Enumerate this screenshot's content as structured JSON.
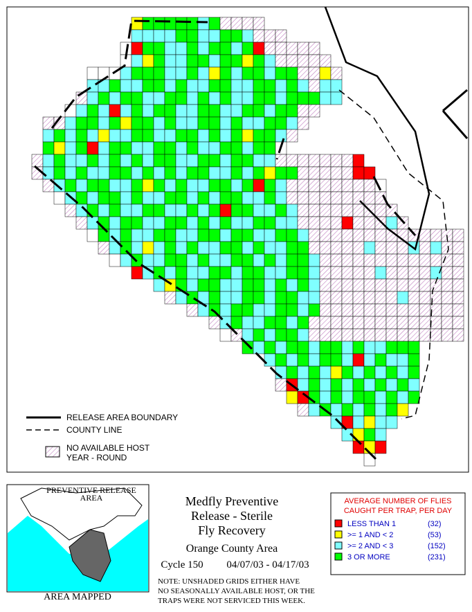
{
  "map_legend": {
    "release_boundary": "RELEASE AREA BOUNDARY",
    "county_line": "COUNTY LINE",
    "no_host": [
      "NO AVAILABLE HOST",
      "YEAR - ROUND"
    ]
  },
  "grid": {
    "colors": {
      "R": "#ff0000",
      "Y": "#ffff00",
      "C": "#80ffff",
      "G": "#00ff00",
      "W": "#ffffff"
    },
    "rows": [
      "..........YGGGGGCGHHHH",
      "..........CCCCGGCCGGCHHH",
      ".........WRGGCCGCGGCGRHHHHH",
      ".........WCYGCCGGCGGYGCHHHHH",
      "......WWWCGGGCCGCYGCGGCGGHHYH",
      "......CCGCCGGCGCCGGCCGGCGCHCC",
      ".....HCGCGGCCGGCGCGCCGGCGGGCC",
      "....WCGCRCGCGGCCGGCCGGCGGHH",
      "..HHCGGCGYGGCGCCGGCGCCGGCH",
      "..CGCGCYCCGGCCGGCGCGYGGCH",
      "..GYCGRCGGCCGGCGCCGGCGGW",
      ".HCGCCGCGCGCGGCCGGCGGCCHHHHHHHR",
      ".HCGCGCCGGCGCGCGGCCGCGYGGHHHHHRR",
      "..HCGCGGCCGYGCGCCGGCGRGCHHHHHHHHW",
      "...WCGCGGCGCCGGCGCGGCCGCHHHHHHHHH",
      "....HCGCGCCGGCCGCGRGGCCGCHHHHHHHHH",
      ".....HCGCGGCCGGCGCGCCGGCCHHHHRHHHCH",
      "......WGCGCCGGCCGGCGGCCGGCHHHHHHHHHHHHHH",
      ".......HCGCYCGCGCCGGCGCCGGHHHHHCHHHCHCHH",
      "........WCGCCGGCGCCGGCGCGGCHHHHHHHHHHHHH",
      "..........RCGCGCCGGCGGCCGGCHHHHHCHHHHCHH",
      "............CYGCGGCCGGCGCGCHHHHHHHHHHHHH",
      ".............HCGCGCCGGCGGCCHHHHHHHCHHHHH",
      "...............HCGCGGCCGGCGHHHHHHHHHHHHH",
      ".................HCGCCGGCGHHHHHHHHHHHHHH",
      "..................WHCGCGGCHHHHHHHHHHHHHH",
      "....................GCGCGGCGGCGCCGGG",
      "......................CGCGCGGCRCGCCG",
      ".......................CGCGCYGCGCGCG",
      ".......................HRCGCGCGCGCGC",
      "........................YRGCGCGGCGCG",
      ".........................HCGCGCGCGY",
      "............................CRCYCC",
      ".............................CYGC",
      "..............................RYR",
      "...............................W"
    ]
  },
  "inset": {
    "label": [
      "PREVENTIVE RELEASE",
      "AREA"
    ],
    "caption": "AREA MAPPED"
  },
  "title": {
    "lines": [
      "Medfly Preventive",
      "Release - Sterile",
      "Fly Recovery"
    ],
    "area": "Orange County Area",
    "cycle": "Cycle 150",
    "dates": "04/07/03 - 04/17/03"
  },
  "note": [
    "NOTE: UNSHADED GRIDS EITHER HAVE",
    "NO SEASONALLY AVAILABLE HOST, OR THE",
    "TRAPS WERE NOT SERVICED THIS WEEK."
  ],
  "legend": {
    "title": [
      "AVERAGE NUMBER OF FLIES",
      "CAUGHT PER TRAP, PER DAY"
    ],
    "items": [
      {
        "label": "LESS THAN 1",
        "count": "(32)",
        "color": "#ff0000"
      },
      {
        "label": ">= 1 AND < 2",
        "count": "(53)",
        "color": "#ffff00"
      },
      {
        "label": ">= 2 AND < 3",
        "count": "(152)",
        "color": "#80ffff"
      },
      {
        "label": "3 OR MORE",
        "count": "(231)",
        "color": "#00ff00"
      }
    ]
  }
}
